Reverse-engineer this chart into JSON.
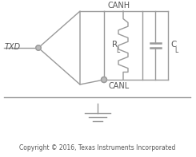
{
  "copyright_text": "Copyright © 2016, Texas Instruments Incorporated",
  "txd_label": "TXD",
  "canh_label": "CANH",
  "canl_label": "CANL",
  "rl_label": "R",
  "rl_sub": "L",
  "cl_label": "C",
  "cl_sub": "L",
  "line_color": "#999999",
  "text_color": "#555555",
  "circle_color": "#bbbbbb",
  "bg_color": "#ffffff",
  "fig_width": 2.45,
  "fig_height": 1.97,
  "dpi": 100
}
